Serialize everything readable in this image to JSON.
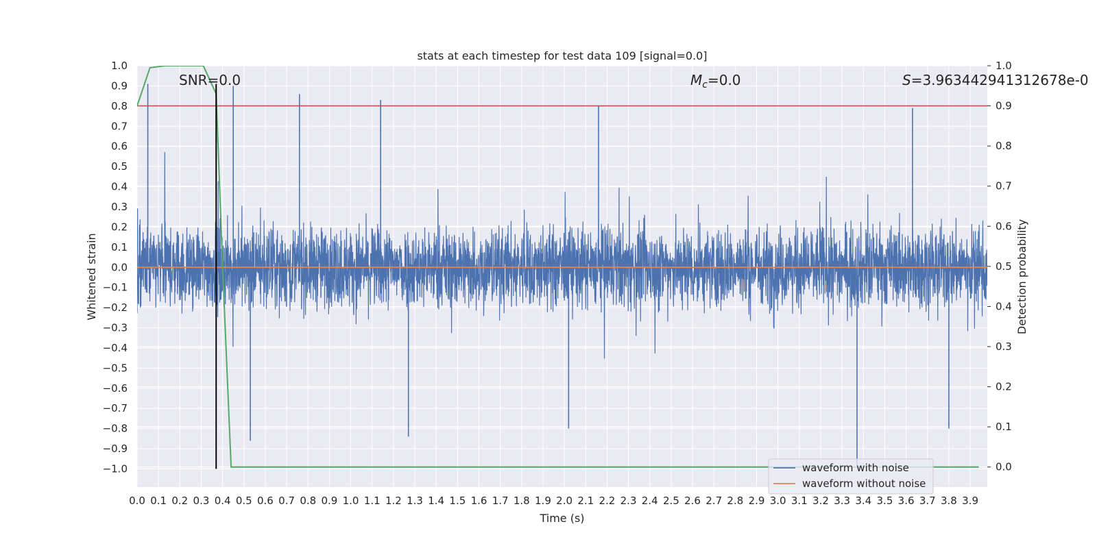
{
  "chart_data": {
    "type": "line",
    "title": "stats at each timestep for test data 109 [signal=0.0]",
    "xlabel": "Time (s)",
    "ylabel": "Whitened strain",
    "y2label": "Detection probability",
    "xlim": [
      0.0,
      3.98
    ],
    "ylim": [
      -1.09,
      1.0
    ],
    "y2lim": [
      -0.05,
      1.0
    ],
    "xticks": [
      "0.0",
      "0.1",
      "0.2",
      "0.3",
      "0.4",
      "0.5",
      "0.6",
      "0.7",
      "0.8",
      "0.9",
      "1.0",
      "1.1",
      "1.2",
      "1.3",
      "1.4",
      "1.5",
      "1.6",
      "1.7",
      "1.8",
      "1.9",
      "2.0",
      "2.1",
      "2.2",
      "2.3",
      "2.4",
      "2.5",
      "2.6",
      "2.7",
      "2.8",
      "2.9",
      "3.0",
      "3.1",
      "3.2",
      "3.3",
      "3.4",
      "3.5",
      "3.6",
      "3.7",
      "3.8",
      "3.9"
    ],
    "yticks": [
      "1.0",
      "0.9",
      "0.8",
      "0.7",
      "0.6",
      "0.5",
      "0.4",
      "0.3",
      "0.2",
      "0.1",
      "0.0",
      "−0.1",
      "−0.2",
      "−0.3",
      "−0.4",
      "−0.5",
      "−0.6",
      "−0.7",
      "−0.8",
      "−0.9",
      "−1.0"
    ],
    "y2ticks": [
      "1.0",
      "0.9",
      "0.8",
      "0.7",
      "0.6",
      "0.5",
      "0.4",
      "0.3",
      "0.2",
      "0.1",
      "0.0"
    ],
    "annotations": {
      "snr": "SNR=0.0",
      "mc_symbol": "M",
      "mc_sub": "c",
      "mc_value": "=0.0",
      "s_symbol": "S",
      "s_value": "=3.963442941312678e-0"
    },
    "legend": {
      "placement": "lower-right",
      "entries": [
        "waveform with noise",
        "waveform without noise"
      ]
    },
    "colors": {
      "noisy": "#4c72b0",
      "clean": "#dd8452",
      "probability": "#55a868",
      "threshold": "#c44e52",
      "marker": "#000000",
      "background": "#eaeaf2",
      "grid": "#ffffff"
    },
    "series": [
      {
        "name": "waveform with noise",
        "style": "dense noise band, approx. ±0.5 envelope with spikes",
        "notable_peaks": [
          {
            "x": 0.05,
            "y": 0.91
          },
          {
            "x": 0.45,
            "y": 0.9
          },
          {
            "x": 0.76,
            "y": 0.86
          },
          {
            "x": 1.14,
            "y": 0.83
          },
          {
            "x": 2.16,
            "y": 0.8
          },
          {
            "x": 3.63,
            "y": 0.79
          }
        ],
        "notable_troughs": [
          {
            "x": 0.53,
            "y": -0.86
          },
          {
            "x": 1.27,
            "y": -0.84
          },
          {
            "x": 2.02,
            "y": -0.8
          },
          {
            "x": 3.37,
            "y": -1.0
          },
          {
            "x": 3.8,
            "y": -0.8
          }
        ]
      },
      {
        "name": "waveform without noise",
        "x": [
          0.0,
          3.98
        ],
        "y": [
          0.0,
          0.0
        ]
      },
      {
        "name": "detection probability",
        "axis": "right",
        "x": [
          0.0,
          0.06,
          0.13,
          0.2,
          0.31,
          0.37,
          0.4,
          0.44,
          3.94
        ],
        "y": [
          0.9,
          0.995,
          1.0,
          1.0,
          1.0,
          0.93,
          0.5,
          0.0,
          0.0
        ]
      },
      {
        "name": "threshold",
        "axis": "right",
        "y": 0.9
      },
      {
        "name": "peak marker",
        "x": 0.37,
        "y_range": [
          -1.0,
          0.91
        ]
      }
    ]
  }
}
